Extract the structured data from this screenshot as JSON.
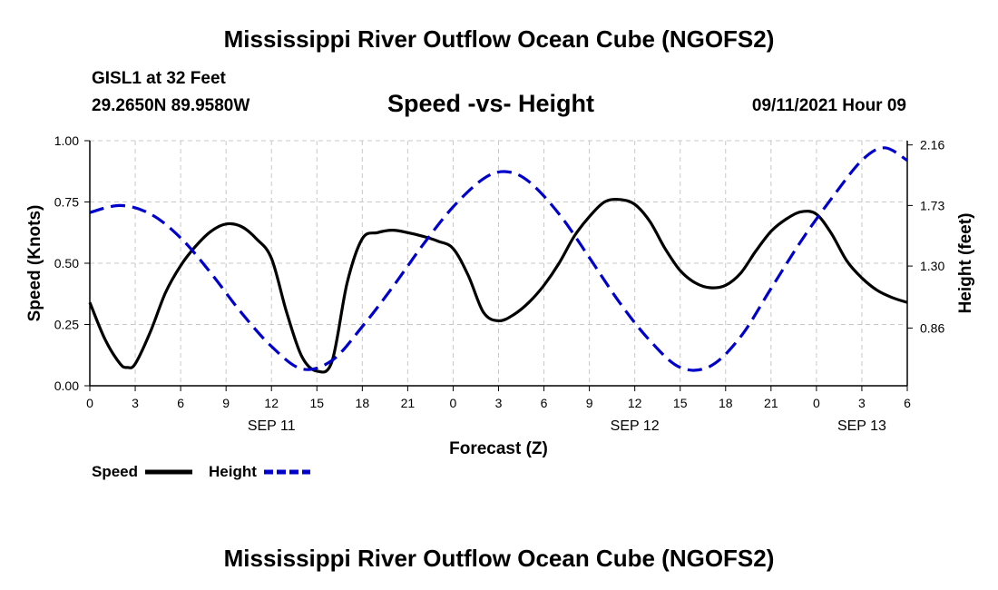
{
  "header": {
    "title": "Mississippi River Outflow Ocean Cube (NGOFS2)",
    "station": "GISL1 at 32 Feet",
    "coords": "29.2650N  89.9580W",
    "datetime": "09/11/2021 Hour 09"
  },
  "footer": {
    "title": "Mississippi River Outflow Ocean Cube (NGOFS2)"
  },
  "chart_data": {
    "type": "line",
    "title": "Speed -vs- Height",
    "xlabel": "Forecast (Z)",
    "ylabel": "Speed (Knots)",
    "y2label": "Height (feet)",
    "xlim": [
      0,
      54
    ],
    "ylim": [
      0,
      1
    ],
    "y2lim": [
      0.45,
      2.19
    ],
    "grid": true,
    "x_ticks": [
      {
        "x": 0,
        "label": "0"
      },
      {
        "x": 3,
        "label": "3"
      },
      {
        "x": 6,
        "label": "6"
      },
      {
        "x": 9,
        "label": "9"
      },
      {
        "x": 12,
        "label": "12"
      },
      {
        "x": 15,
        "label": "15"
      },
      {
        "x": 18,
        "label": "18"
      },
      {
        "x": 21,
        "label": "21"
      },
      {
        "x": 24,
        "label": "0"
      },
      {
        "x": 27,
        "label": "3"
      },
      {
        "x": 30,
        "label": "6"
      },
      {
        "x": 33,
        "label": "9"
      },
      {
        "x": 36,
        "label": "12"
      },
      {
        "x": 39,
        "label": "15"
      },
      {
        "x": 42,
        "label": "18"
      },
      {
        "x": 45,
        "label": "21"
      },
      {
        "x": 48,
        "label": "0"
      },
      {
        "x": 51,
        "label": "3"
      },
      {
        "x": 54,
        "label": "6"
      }
    ],
    "date_labels": [
      {
        "x": 12,
        "label": "SEP 11"
      },
      {
        "x": 36,
        "label": "SEP 12"
      },
      {
        "x": 51,
        "label": "SEP 13"
      }
    ],
    "y_ticks": [
      {
        "v": 0.0,
        "label": "0.00"
      },
      {
        "v": 0.25,
        "label": "0.25"
      },
      {
        "v": 0.5,
        "label": "0.50"
      },
      {
        "v": 0.75,
        "label": "0.75"
      },
      {
        "v": 1.0,
        "label": "1.00"
      }
    ],
    "y2_ticks": [
      {
        "v": 0.86,
        "label": "0.86"
      },
      {
        "v": 1.3,
        "label": "1.30"
      },
      {
        "v": 1.73,
        "label": "1.73"
      },
      {
        "v": 2.16,
        "label": "2.16"
      }
    ],
    "series": [
      {
        "name": "Speed",
        "axis": "left",
        "color": "#000000",
        "dash": false,
        "x": [
          0,
          1,
          2,
          2.5,
          3,
          4,
          5,
          6,
          7,
          8,
          9,
          10,
          11,
          12,
          13,
          14,
          15,
          16,
          17,
          18,
          19,
          20,
          21,
          22,
          23,
          24,
          25,
          26,
          27,
          28,
          29,
          30,
          31,
          32,
          33,
          34,
          35,
          36,
          37,
          38,
          39,
          40,
          41,
          42,
          43,
          44,
          45,
          46,
          47,
          48,
          49,
          50,
          51,
          52,
          53,
          54
        ],
        "values": [
          0.34,
          0.19,
          0.09,
          0.075,
          0.09,
          0.22,
          0.38,
          0.49,
          0.57,
          0.63,
          0.66,
          0.65,
          0.6,
          0.52,
          0.3,
          0.12,
          0.06,
          0.1,
          0.42,
          0.6,
          0.625,
          0.635,
          0.625,
          0.61,
          0.59,
          0.56,
          0.45,
          0.3,
          0.265,
          0.29,
          0.34,
          0.41,
          0.5,
          0.61,
          0.69,
          0.75,
          0.76,
          0.74,
          0.67,
          0.56,
          0.47,
          0.42,
          0.4,
          0.41,
          0.46,
          0.55,
          0.63,
          0.68,
          0.71,
          0.7,
          0.62,
          0.51,
          0.44,
          0.39,
          0.36,
          0.34
        ]
      },
      {
        "name": "Height",
        "axis": "right",
        "color": "#0000cc",
        "dash": true,
        "x": [
          0,
          2,
          4,
          6,
          8,
          10,
          12,
          14,
          16,
          18,
          20,
          22,
          24,
          26,
          27.5,
          29,
          31,
          33,
          35,
          37,
          39,
          41,
          43,
          45,
          47,
          49,
          51,
          52.5,
          54
        ],
        "values": [
          1.68,
          1.73,
          1.67,
          1.5,
          1.25,
          0.97,
          0.73,
          0.57,
          0.63,
          0.87,
          1.15,
          1.45,
          1.72,
          1.92,
          1.97,
          1.9,
          1.67,
          1.36,
          1.04,
          0.77,
          0.58,
          0.59,
          0.8,
          1.14,
          1.48,
          1.78,
          2.05,
          2.14,
          2.05
        ]
      }
    ],
    "legend": [
      {
        "label": "Speed",
        "series": "Speed"
      },
      {
        "label": "Height",
        "series": "Height"
      }
    ],
    "legend_position": "bottom-left"
  }
}
